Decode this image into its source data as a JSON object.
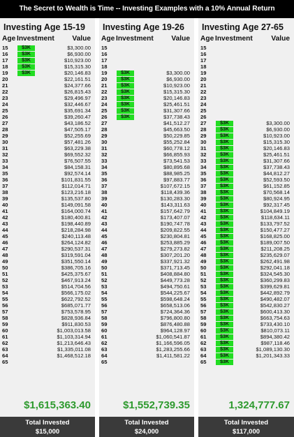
{
  "banner": "The Secret to Wealth is Time -- Investing Examples with a 10% Annual Return",
  "colors": {
    "highlight": "#22dd22",
    "total_text": "#2e9a2e",
    "footer_bg": "#3a3a3a"
  },
  "columns": {
    "age": "Age",
    "investment": "Investment",
    "value": "Value"
  },
  "footer_label": "Total Invested",
  "panels": [
    {
      "title": "Investing Age 15-19",
      "total_value": "$1,615,363.40",
      "total_invested": "$15,000",
      "rows": [
        {
          "age": "15",
          "inv": "$3K",
          "val": "$3,300.00"
        },
        {
          "age": "16",
          "inv": "$3K",
          "val": "$6,930.00"
        },
        {
          "age": "17",
          "inv": "$3K",
          "val": "$10,923.00"
        },
        {
          "age": "18",
          "inv": "$3K",
          "val": "$15,315.30"
        },
        {
          "age": "19",
          "inv": "$3K",
          "val": "$20,146.83"
        },
        {
          "age": "20",
          "inv": "",
          "val": "$22,161.51"
        },
        {
          "age": "21",
          "inv": "",
          "val": "$24,377.66"
        },
        {
          "age": "22",
          "inv": "",
          "val": "$26,815.43"
        },
        {
          "age": "23",
          "inv": "",
          "val": "$29,496.97"
        },
        {
          "age": "24",
          "inv": "",
          "val": "$32,446.67"
        },
        {
          "age": "25",
          "inv": "",
          "val": "$35,691.34"
        },
        {
          "age": "26",
          "inv": "",
          "val": "$39,260.47"
        },
        {
          "age": "27",
          "inv": "",
          "val": "$43,186.52"
        },
        {
          "age": "28",
          "inv": "",
          "val": "$47,505.17"
        },
        {
          "age": "29",
          "inv": "",
          "val": "$52,255.69"
        },
        {
          "age": "30",
          "inv": "",
          "val": "$57,481.26"
        },
        {
          "age": "31",
          "inv": "",
          "val": "$63,229.38"
        },
        {
          "age": "32",
          "inv": "",
          "val": "$69,552.32"
        },
        {
          "age": "33",
          "inv": "",
          "val": "$76,507.55"
        },
        {
          "age": "34",
          "inv": "",
          "val": "$84,158.31"
        },
        {
          "age": "35",
          "inv": "",
          "val": "$92,574.14"
        },
        {
          "age": "36",
          "inv": "",
          "val": "$101,831.55"
        },
        {
          "age": "37",
          "inv": "",
          "val": "$112,014.71"
        },
        {
          "age": "38",
          "inv": "",
          "val": "$123,216.18"
        },
        {
          "age": "39",
          "inv": "",
          "val": "$135,537.80"
        },
        {
          "age": "40",
          "inv": "",
          "val": "$149,091.58"
        },
        {
          "age": "41",
          "inv": "",
          "val": "$164,000.74"
        },
        {
          "age": "42",
          "inv": "",
          "val": "$180,400.81"
        },
        {
          "age": "43",
          "inv": "",
          "val": "$198,440.89"
        },
        {
          "age": "44",
          "inv": "",
          "val": "$218,284.98"
        },
        {
          "age": "45",
          "inv": "",
          "val": "$240,113.48"
        },
        {
          "age": "46",
          "inv": "",
          "val": "$264,124.82"
        },
        {
          "age": "47",
          "inv": "",
          "val": "$290,537.31"
        },
        {
          "age": "48",
          "inv": "",
          "val": "$319,591.04"
        },
        {
          "age": "49",
          "inv": "",
          "val": "$351,550.14"
        },
        {
          "age": "50",
          "inv": "",
          "val": "$386,705.16"
        },
        {
          "age": "51",
          "inv": "",
          "val": "$425,375.67"
        },
        {
          "age": "52",
          "inv": "",
          "val": "$467,913.24"
        },
        {
          "age": "53",
          "inv": "",
          "val": "$514,704.56"
        },
        {
          "age": "54",
          "inv": "",
          "val": "$566,175.02"
        },
        {
          "age": "55",
          "inv": "",
          "val": "$622,792.52"
        },
        {
          "age": "56",
          "inv": "",
          "val": "$685,071.77"
        },
        {
          "age": "57",
          "inv": "",
          "val": "$753,578.95"
        },
        {
          "age": "58",
          "inv": "",
          "val": "$828,936.84"
        },
        {
          "age": "59",
          "inv": "",
          "val": "$911,830.53"
        },
        {
          "age": "60",
          "inv": "",
          "val": "$1,003,013.58"
        },
        {
          "age": "61",
          "inv": "",
          "val": "$1,103,314.94"
        },
        {
          "age": "62",
          "inv": "",
          "val": "$1,213,646.43"
        },
        {
          "age": "63",
          "inv": "",
          "val": "$1,335,011.08"
        },
        {
          "age": "64",
          "inv": "",
          "val": "$1,468,512.18"
        },
        {
          "age": "65",
          "inv": "",
          "val": ""
        }
      ]
    },
    {
      "title": "Investing Age 19-26",
      "total_value": "$1,552,739.35",
      "total_invested": "$24,000",
      "rows": [
        {
          "age": "15",
          "inv": "",
          "val": ""
        },
        {
          "age": "16",
          "inv": "",
          "val": ""
        },
        {
          "age": "17",
          "inv": "",
          "val": ""
        },
        {
          "age": "18",
          "inv": "",
          "val": ""
        },
        {
          "age": "19",
          "inv": "$3K",
          "val": "$3,300.00"
        },
        {
          "age": "20",
          "inv": "$3K",
          "val": "$6,930.00"
        },
        {
          "age": "21",
          "inv": "$3K",
          "val": "$10,923.00"
        },
        {
          "age": "22",
          "inv": "$3K",
          "val": "$15,315.30"
        },
        {
          "age": "23",
          "inv": "$3K",
          "val": "$20,146.83"
        },
        {
          "age": "24",
          "inv": "$3K",
          "val": "$25,461.51"
        },
        {
          "age": "25",
          "inv": "$3K",
          "val": "$31,307.66"
        },
        {
          "age": "26",
          "inv": "$3K",
          "val": "$37,738.43"
        },
        {
          "age": "27",
          "inv": "",
          "val": "$41,512.27"
        },
        {
          "age": "28",
          "inv": "",
          "val": "$45,663.50"
        },
        {
          "age": "29",
          "inv": "",
          "val": "$50,229.85"
        },
        {
          "age": "30",
          "inv": "",
          "val": "$55,252.84"
        },
        {
          "age": "31",
          "inv": "",
          "val": "$60,778.12"
        },
        {
          "age": "32",
          "inv": "",
          "val": "$66,855.93"
        },
        {
          "age": "33",
          "inv": "",
          "val": "$73,541.53"
        },
        {
          "age": "34",
          "inv": "",
          "val": "$80,895.68"
        },
        {
          "age": "35",
          "inv": "",
          "val": "$88,985.25"
        },
        {
          "age": "36",
          "inv": "",
          "val": "$97,883.77"
        },
        {
          "age": "37",
          "inv": "",
          "val": "$107,672.15"
        },
        {
          "age": "38",
          "inv": "",
          "val": "$118,439.36"
        },
        {
          "age": "39",
          "inv": "",
          "val": "$130,283.30"
        },
        {
          "age": "40",
          "inv": "",
          "val": "$143,311.63"
        },
        {
          "age": "41",
          "inv": "",
          "val": "$157,642.79"
        },
        {
          "age": "42",
          "inv": "",
          "val": "$173,407.07"
        },
        {
          "age": "43",
          "inv": "",
          "val": "$190,747.78"
        },
        {
          "age": "44",
          "inv": "",
          "val": "$209,822.55"
        },
        {
          "age": "45",
          "inv": "",
          "val": "$230,804.81"
        },
        {
          "age": "46",
          "inv": "",
          "val": "$253,885.29"
        },
        {
          "age": "47",
          "inv": "",
          "val": "$279,273.82"
        },
        {
          "age": "48",
          "inv": "",
          "val": "$307,201.20"
        },
        {
          "age": "49",
          "inv": "",
          "val": "$337,921.32"
        },
        {
          "age": "50",
          "inv": "",
          "val": "$371,713.45"
        },
        {
          "age": "51",
          "inv": "",
          "val": "$408,884.80"
        },
        {
          "age": "52",
          "inv": "",
          "val": "$449,773.28"
        },
        {
          "age": "53",
          "inv": "",
          "val": "$494,750.61"
        },
        {
          "age": "54",
          "inv": "",
          "val": "$544,225.67"
        },
        {
          "age": "55",
          "inv": "",
          "val": "$598,648.24"
        },
        {
          "age": "56",
          "inv": "",
          "val": "$658,513.06"
        },
        {
          "age": "57",
          "inv": "",
          "val": "$724,364.36"
        },
        {
          "age": "58",
          "inv": "",
          "val": "$796,800.80"
        },
        {
          "age": "59",
          "inv": "",
          "val": "$876,480.88"
        },
        {
          "age": "60",
          "inv": "",
          "val": "$964,128.97"
        },
        {
          "age": "61",
          "inv": "",
          "val": "$1,060,541.87"
        },
        {
          "age": "62",
          "inv": "",
          "val": "$1,166,596.05"
        },
        {
          "age": "63",
          "inv": "",
          "val": "$1,283,255.66"
        },
        {
          "age": "64",
          "inv": "",
          "val": "$1,411,581.22"
        },
        {
          "age": "65",
          "inv": "",
          "val": ""
        }
      ]
    },
    {
      "title": "Investing Age 27-65",
      "total_value": "1,324,777.67",
      "total_invested": "$117,000",
      "rows": [
        {
          "age": "15",
          "inv": "",
          "val": ""
        },
        {
          "age": "16",
          "inv": "",
          "val": ""
        },
        {
          "age": "17",
          "inv": "",
          "val": ""
        },
        {
          "age": "18",
          "inv": "",
          "val": ""
        },
        {
          "age": "19",
          "inv": "",
          "val": ""
        },
        {
          "age": "20",
          "inv": "",
          "val": ""
        },
        {
          "age": "21",
          "inv": "",
          "val": ""
        },
        {
          "age": "22",
          "inv": "",
          "val": ""
        },
        {
          "age": "23",
          "inv": "",
          "val": ""
        },
        {
          "age": "24",
          "inv": "",
          "val": ""
        },
        {
          "age": "25",
          "inv": "",
          "val": ""
        },
        {
          "age": "26",
          "inv": "",
          "val": ""
        },
        {
          "age": "27",
          "inv": "$3K",
          "val": "$3,300.00"
        },
        {
          "age": "28",
          "inv": "$3K",
          "val": "$6,930.00"
        },
        {
          "age": "29",
          "inv": "$3K",
          "val": "$10,923.00"
        },
        {
          "age": "30",
          "inv": "$3K",
          "val": "$15,315.30"
        },
        {
          "age": "31",
          "inv": "$3K",
          "val": "$20,146.83"
        },
        {
          "age": "32",
          "inv": "$3K",
          "val": "$25,461.51"
        },
        {
          "age": "33",
          "inv": "$3K",
          "val": "$31,307.66"
        },
        {
          "age": "34",
          "inv": "$3K",
          "val": "$37,738.43"
        },
        {
          "age": "35",
          "inv": "$3K",
          "val": "$44,812.27"
        },
        {
          "age": "36",
          "inv": "$3K",
          "val": "$52,593.50"
        },
        {
          "age": "37",
          "inv": "$3K",
          "val": "$61,152.85"
        },
        {
          "age": "38",
          "inv": "$3K",
          "val": "$70,568.14"
        },
        {
          "age": "39",
          "inv": "$3K",
          "val": "$80,924.95"
        },
        {
          "age": "40",
          "inv": "$3K",
          "val": "$92,317.45"
        },
        {
          "age": "41",
          "inv": "$3K",
          "val": "$104,849.19"
        },
        {
          "age": "42",
          "inv": "$3K",
          "val": "$118,634.11"
        },
        {
          "age": "43",
          "inv": "$3K",
          "val": "$133,797.52"
        },
        {
          "age": "44",
          "inv": "$3K",
          "val": "$150,477.27"
        },
        {
          "age": "45",
          "inv": "$3K",
          "val": "$168,825.00"
        },
        {
          "age": "46",
          "inv": "$3K",
          "val": "$189,007.50"
        },
        {
          "age": "47",
          "inv": "$3K",
          "val": "$211,208.25"
        },
        {
          "age": "48",
          "inv": "$3K",
          "val": "$235,629.07"
        },
        {
          "age": "49",
          "inv": "$3K",
          "val": "$262,491.98"
        },
        {
          "age": "50",
          "inv": "$3K",
          "val": "$292,041.18"
        },
        {
          "age": "51",
          "inv": "$3K",
          "val": "$324,545.30"
        },
        {
          "age": "52",
          "inv": "$3K",
          "val": "$360,299.83"
        },
        {
          "age": "53",
          "inv": "$3K",
          "val": "$399,629.81"
        },
        {
          "age": "54",
          "inv": "$3K",
          "val": "$442,892.79"
        },
        {
          "age": "55",
          "inv": "$3K",
          "val": "$490,482.07"
        },
        {
          "age": "56",
          "inv": "$3K",
          "val": "$542,830.27"
        },
        {
          "age": "57",
          "inv": "$3K",
          "val": "$600,413.30"
        },
        {
          "age": "58",
          "inv": "$3K",
          "val": "$663,754.63"
        },
        {
          "age": "59",
          "inv": "$3K",
          "val": "$733,430.10"
        },
        {
          "age": "60",
          "inv": "$3K",
          "val": "$810,073.11"
        },
        {
          "age": "61",
          "inv": "$3K",
          "val": "$894,380.42"
        },
        {
          "age": "62",
          "inv": "$3K",
          "val": "$987,118.46"
        },
        {
          "age": "63",
          "inv": "$3K",
          "val": "$1,089,130.30"
        },
        {
          "age": "64",
          "inv": "$3K",
          "val": "$1,201,343.33"
        },
        {
          "age": "65",
          "inv": "$3K",
          "val": ""
        }
      ]
    }
  ]
}
